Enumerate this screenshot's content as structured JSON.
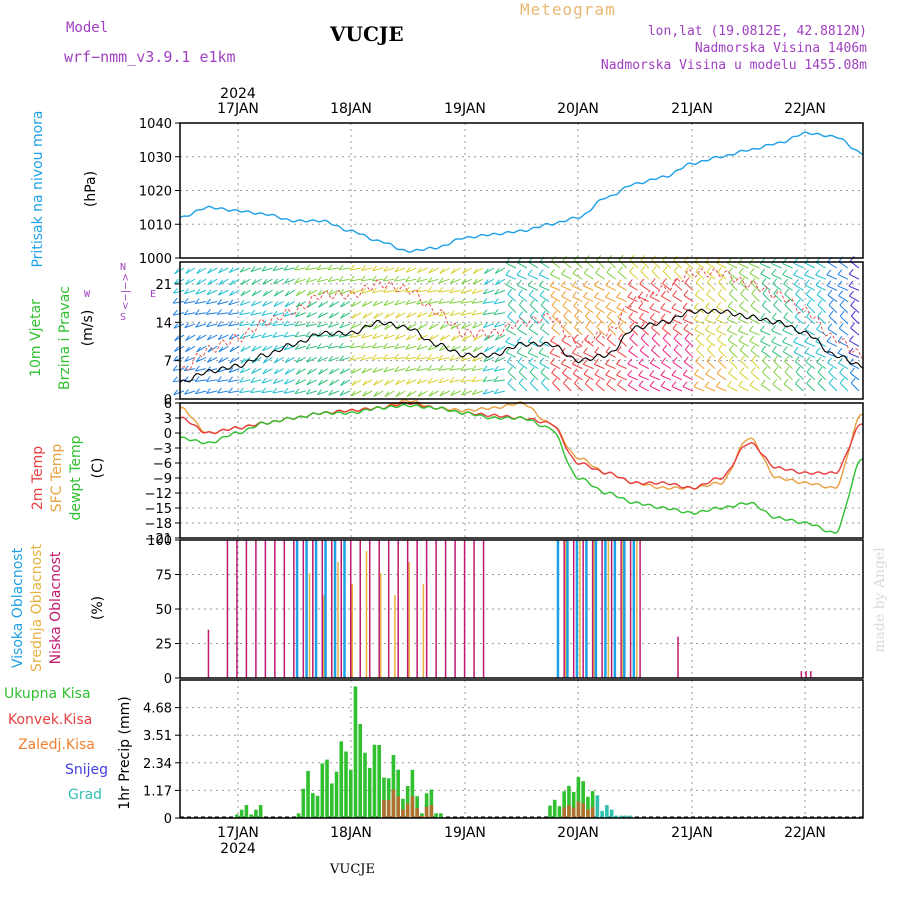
{
  "header": {
    "model_label": "Model",
    "model_name": "wrf−nmm_v3.9.1  e1km",
    "title": "VUCJE",
    "subtitle": "Meteogram",
    "lonlat": "lon,lat (19.0812E, 42.8812N)",
    "altitude": "Nadmorska Visina 1406m",
    "model_altitude": "Nadmorska Visina u modelu 1455.08m",
    "bottom_label": "VUCJE",
    "credit": "made by Angel"
  },
  "colors": {
    "pressure": "#1ea0e6",
    "t2m": "#e83c3c",
    "sfc": "#e8a040",
    "dewpt": "#30c030",
    "high_cloud": "#1ea0e6",
    "mid_cloud": "#e8b040",
    "low_cloud": "#c01870",
    "precip_total": "#30c030",
    "precip_conv": "#e84040",
    "precip_frozen": "#f08030",
    "snow": "#4040e0",
    "graupel": "#30c0b0"
  },
  "chart_data": [
    {
      "type": "line",
      "title": "",
      "ylabel_parts": [
        "Pritisak na nivou mora",
        "(hPa)"
      ],
      "top_axis": {
        "year": "2024",
        "labels": [
          "17JAN",
          "18JAN",
          "19JAN",
          "20JAN",
          "21JAN",
          "22JAN"
        ]
      },
      "ylim": [
        1000,
        1040
      ],
      "yticks": [
        "1040",
        "1030",
        "1020",
        "1010",
        "1000"
      ],
      "x_hours": [
        0,
        6,
        12,
        18,
        24,
        30,
        36,
        42,
        48,
        54,
        60,
        66,
        72,
        78,
        84,
        90,
        96,
        102,
        108,
        114,
        120,
        126,
        132,
        138,
        144
      ],
      "series": [
        {
          "values": [
            1012,
            1015,
            1014,
            1013,
            1011,
            1011,
            1008,
            1005,
            1002,
            1003,
            1006,
            1007,
            1008,
            1010,
            1012,
            1018,
            1022,
            1024,
            1028,
            1030,
            1032,
            1034,
            1037,
            1036,
            1031
          ]
        }
      ]
    },
    {
      "type": "line",
      "title": "",
      "ylabel_parts": [
        "10m Vjetar",
        "Brzina i Pravac",
        "(m/s)"
      ],
      "direction_key": [
        "N",
        "<−|−>",
        "E",
        "W",
        "S"
      ],
      "ylim": [
        0,
        25
      ],
      "yticks": [
        "21",
        "14",
        "7",
        "0"
      ],
      "x_hours": [
        0,
        6,
        12,
        18,
        24,
        30,
        36,
        42,
        48,
        54,
        60,
        66,
        72,
        78,
        84,
        90,
        96,
        102,
        108,
        114,
        120,
        126,
        132,
        138,
        144
      ],
      "series": [
        {
          "values": [
            3,
            5,
            6,
            8,
            10,
            12,
            12,
            14,
            13,
            10,
            8,
            8,
            10,
            10,
            7,
            8,
            13,
            14,
            16,
            16,
            15,
            14,
            12,
            8,
            6
          ]
        },
        {
          "values": [
            5,
            9,
            11,
            14,
            16,
            19,
            19,
            21,
            20,
            16,
            12,
            12,
            14,
            15,
            10,
            12,
            18,
            20,
            23,
            23,
            21,
            19,
            16,
            11,
            8
          ]
        }
      ]
    },
    {
      "type": "line",
      "title": "",
      "ylabel_parts": [
        "2m Temp",
        "SFC Temp",
        "dewpt Temp",
        "(C)"
      ],
      "ylim": [
        -21,
        6
      ],
      "yticks": [
        "6",
        "3",
        "0",
        "−3",
        "−6",
        "−9",
        "−12",
        "−15",
        "−18",
        "−21"
      ],
      "x_hours": [
        0,
        6,
        12,
        18,
        24,
        30,
        36,
        42,
        48,
        54,
        60,
        66,
        72,
        78,
        84,
        90,
        96,
        102,
        108,
        114,
        120,
        126,
        132,
        138,
        144
      ],
      "series": [
        {
          "name": "2m Temp",
          "values": [
            3,
            0,
            1,
            2,
            3,
            4,
            4.5,
            5,
            6,
            5,
            4,
            3.5,
            3,
            2,
            -6,
            -8,
            -10,
            -10,
            -11,
            -9,
            -2,
            -7,
            -8,
            -8,
            2
          ]
        },
        {
          "name": "SFC Temp",
          "values": [
            5,
            0,
            1,
            2,
            3,
            4,
            4.5,
            5,
            6.5,
            5,
            4.5,
            5,
            6,
            2,
            -5,
            -8,
            -10,
            -11,
            -11,
            -10,
            -1,
            -9,
            -10,
            -11,
            4
          ]
        },
        {
          "name": "dewpt Temp",
          "values": [
            -1,
            -2,
            0,
            2,
            3,
            4,
            4,
            5,
            5.5,
            5,
            4,
            3,
            3,
            1,
            -9,
            -12,
            -14,
            -15,
            -16,
            -15,
            -14,
            -17,
            -18,
            -20,
            -5
          ]
        }
      ]
    },
    {
      "type": "bar",
      "title": "",
      "ylabel_parts": [
        "Visoka Oblacnost",
        "Srednja Oblacnost",
        "Niska Oblacnost",
        "(%)"
      ],
      "ylim": [
        0,
        100
      ],
      "yticks": [
        "100",
        "75",
        "50",
        "25",
        "0"
      ]
    },
    {
      "type": "bar",
      "title": "",
      "ylabel": "1hr Precip (mm)",
      "legend": [
        "Ukupna Kisa",
        "Konvek.Kisa",
        "Zaledj.Kisa",
        "Snijeg",
        "Grad"
      ],
      "bottom_axis": {
        "labels": [
          "17JAN",
          "18JAN",
          "19JAN",
          "20JAN",
          "21JAN",
          "22JAN"
        ],
        "year": "2024"
      },
      "ylim": [
        0,
        5.85
      ],
      "yticks": [
        "4.68",
        "3.51",
        "2.34",
        "1.17",
        "0"
      ]
    }
  ]
}
